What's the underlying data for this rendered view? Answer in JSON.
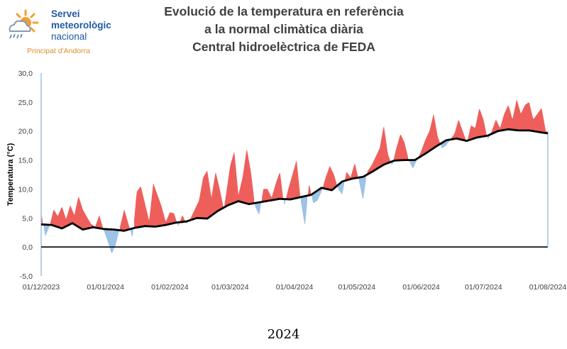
{
  "header": {
    "logo": {
      "line1": "Servei",
      "line2": "meteorològic",
      "line3": "nacional",
      "subtitle": "Principat d'Andorra",
      "icon": "sun-cloud-rain-icon"
    },
    "title_lines": [
      "Evolució de la temperatura en referència",
      "a la normal climàtica diària",
      "Central hidroelèctrica de FEDA"
    ]
  },
  "footer": {
    "label": "2024"
  },
  "chart_data": {
    "type": "area",
    "ylabel": "Temperatura (°C)",
    "ylim": [
      -5,
      30
    ],
    "yticks": [
      "-5,0",
      "0,0",
      "5,0",
      "10,0",
      "15,0",
      "20,0",
      "25,0",
      "30,0"
    ],
    "xlim": [
      "2023-12-01",
      "2024-08-01"
    ],
    "xticks": [
      "01/12/2023",
      "01/01/2024",
      "01/02/2024",
      "01/03/2024",
      "01/04/2024",
      "01/05/2024",
      "01/06/2024",
      "01/07/2024",
      "01/08/2024"
    ],
    "grid": false,
    "colors": {
      "above": "#ee5f5b",
      "below": "#9dc3e6",
      "normal": "#000000",
      "axis": "#9dc3e6"
    },
    "series": [
      {
        "role": "observed",
        "x": [
          "2023-12-01",
          "2023-12-03",
          "2023-12-05",
          "2023-12-07",
          "2023-12-09",
          "2023-12-11",
          "2023-12-13",
          "2023-12-15",
          "2023-12-17",
          "2023-12-19",
          "2023-12-21",
          "2023-12-23",
          "2023-12-25",
          "2023-12-27",
          "2023-12-29",
          "2023-12-31",
          "2024-01-02",
          "2024-01-04",
          "2024-01-06",
          "2024-01-08",
          "2024-01-10",
          "2024-01-12",
          "2024-01-14",
          "2024-01-16",
          "2024-01-18",
          "2024-01-20",
          "2024-01-22",
          "2024-01-24",
          "2024-01-26",
          "2024-01-28",
          "2024-01-30",
          "2024-02-01",
          "2024-02-03",
          "2024-02-05",
          "2024-02-07",
          "2024-02-09",
          "2024-02-11",
          "2024-02-13",
          "2024-02-15",
          "2024-02-17",
          "2024-02-19",
          "2024-02-21",
          "2024-02-23",
          "2024-02-25",
          "2024-02-27",
          "2024-03-01",
          "2024-03-03",
          "2024-03-05",
          "2024-03-07",
          "2024-03-09",
          "2024-03-11",
          "2024-03-13",
          "2024-03-15",
          "2024-03-17",
          "2024-03-19",
          "2024-03-21",
          "2024-03-23",
          "2024-03-25",
          "2024-03-27",
          "2024-03-29",
          "2024-03-31",
          "2024-04-02",
          "2024-04-04",
          "2024-04-06",
          "2024-04-08",
          "2024-04-10",
          "2024-04-12",
          "2024-04-14",
          "2024-04-16",
          "2024-04-18",
          "2024-04-20",
          "2024-04-22",
          "2024-04-24",
          "2024-04-26",
          "2024-04-28",
          "2024-04-30",
          "2024-05-02",
          "2024-05-04",
          "2024-05-06",
          "2024-05-08",
          "2024-05-10",
          "2024-05-12",
          "2024-05-14",
          "2024-05-16",
          "2024-05-18",
          "2024-05-20",
          "2024-05-22",
          "2024-05-24",
          "2024-05-26",
          "2024-05-28",
          "2024-05-30",
          "2024-06-01",
          "2024-06-03",
          "2024-06-05",
          "2024-06-07",
          "2024-06-09",
          "2024-06-11",
          "2024-06-13",
          "2024-06-15",
          "2024-06-17",
          "2024-06-19",
          "2024-06-21",
          "2024-06-23",
          "2024-06-25",
          "2024-06-27",
          "2024-06-29",
          "2024-07-01",
          "2024-07-03",
          "2024-07-05",
          "2024-07-07",
          "2024-07-09",
          "2024-07-11",
          "2024-07-13",
          "2024-07-15",
          "2024-07-17",
          "2024-07-19",
          "2024-07-21",
          "2024-07-23",
          "2024-07-25",
          "2024-07-27",
          "2024-07-29",
          "2024-07-31",
          "2024-08-01"
        ],
        "values": [
          6.0,
          1.8,
          3.5,
          6.5,
          5.3,
          7.0,
          4.8,
          7.2,
          5.5,
          8.8,
          6.5,
          5.2,
          4.0,
          3.5,
          5.5,
          3.0,
          1.0,
          -1.2,
          0.5,
          3.5,
          6.5,
          4.0,
          1.5,
          9.5,
          10.5,
          7.5,
          4.5,
          11.0,
          9.0,
          7.0,
          4.3,
          6.0,
          5.8,
          3.5,
          5.5,
          4.0,
          5.0,
          6.5,
          8.0,
          12.0,
          13.2,
          8.5,
          13.0,
          10.0,
          6.5,
          14.0,
          16.5,
          9.0,
          12.0,
          17.0,
          13.0,
          7.0,
          5.5,
          10.0,
          10.0,
          8.5,
          11.0,
          13.0,
          7.0,
          10.0,
          12.5,
          15.0,
          8.0,
          3.5,
          11.0,
          7.5,
          8.0,
          9.5,
          12.0,
          14.0,
          12.5,
          10.0,
          9.0,
          13.0,
          12.0,
          14.5,
          11.5,
          8.0,
          13.0,
          14.0,
          15.5,
          17.0,
          21.0,
          16.0,
          14.0,
          17.0,
          19.5,
          18.0,
          15.0,
          13.5,
          15.0,
          16.5,
          18.5,
          20.0,
          23.0,
          19.0,
          17.0,
          17.5,
          18.5,
          19.5,
          22.0,
          20.0,
          18.0,
          21.0,
          20.5,
          24.0,
          22.0,
          18.5,
          20.0,
          22.0,
          20.5,
          23.0,
          24.5,
          22.0,
          25.5,
          23.0,
          24.5,
          25.0,
          22.0,
          23.0,
          24.0,
          20.0,
          19.8
        ]
      },
      {
        "role": "normal",
        "x": [
          "2023-12-01",
          "2023-12-06",
          "2023-12-11",
          "2023-12-16",
          "2023-12-21",
          "2023-12-26",
          "2023-12-31",
          "2024-01-05",
          "2024-01-10",
          "2024-01-15",
          "2024-01-20",
          "2024-01-25",
          "2024-01-30",
          "2024-02-04",
          "2024-02-09",
          "2024-02-14",
          "2024-02-19",
          "2024-02-24",
          "2024-02-29",
          "2024-03-05",
          "2024-03-10",
          "2024-03-15",
          "2024-03-20",
          "2024-03-25",
          "2024-03-30",
          "2024-04-04",
          "2024-04-09",
          "2024-04-14",
          "2024-04-19",
          "2024-04-24",
          "2024-04-29",
          "2024-05-04",
          "2024-05-09",
          "2024-05-14",
          "2024-05-19",
          "2024-05-24",
          "2024-05-29",
          "2024-06-03",
          "2024-06-08",
          "2024-06-13",
          "2024-06-18",
          "2024-06-23",
          "2024-06-28",
          "2024-07-03",
          "2024-07-08",
          "2024-07-13",
          "2024-07-18",
          "2024-07-23",
          "2024-07-28",
          "2024-08-01"
        ],
        "values": [
          3.9,
          3.8,
          3.2,
          4.1,
          3.0,
          3.4,
          3.1,
          3.0,
          2.8,
          3.3,
          3.6,
          3.5,
          3.8,
          4.2,
          4.4,
          5.0,
          4.9,
          6.2,
          7.2,
          7.9,
          7.4,
          7.7,
          8.0,
          8.3,
          8.2,
          8.6,
          9.0,
          10.2,
          9.8,
          11.3,
          11.8,
          12.1,
          13.1,
          14.2,
          14.9,
          15.0,
          15.0,
          16.1,
          17.3,
          18.4,
          18.7,
          18.3,
          18.9,
          19.2,
          20.0,
          20.3,
          20.1,
          20.1,
          19.8,
          19.6
        ]
      }
    ]
  }
}
